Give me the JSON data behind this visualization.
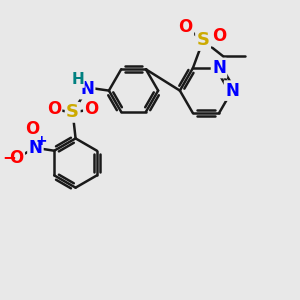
{
  "bg_color": "#e8e8e8",
  "bond_color": "#1a1a1a",
  "bond_width": 1.8,
  "atom_colors": {
    "N": "#0000ff",
    "O": "#ff0000",
    "S": "#ccaa00",
    "H": "#008080",
    "C": "#1a1a1a"
  }
}
